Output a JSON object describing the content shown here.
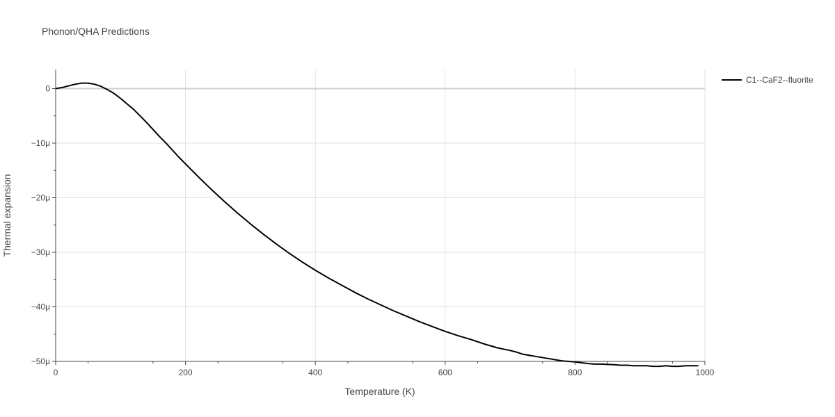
{
  "chart_data": {
    "type": "line",
    "title": "Phonon/QHA Predictions",
    "xlabel": "Temperature (K)",
    "ylabel": "Thermal expansion",
    "xlim": [
      0,
      1000
    ],
    "ylim": [
      -50,
      3.5
    ],
    "x_ticks": [
      0,
      200,
      400,
      600,
      800,
      1000
    ],
    "x_tick_labels": [
      "0",
      "200",
      "400",
      "600",
      "800",
      "1000"
    ],
    "y_ticks": [
      0,
      -10,
      -20,
      -30,
      -40,
      -50
    ],
    "y_tick_labels": [
      "0",
      "−10μ",
      "−20μ",
      "−30μ",
      "−40μ",
      "−50μ"
    ],
    "grid": true,
    "legend_position": "top-right",
    "series": [
      {
        "name": "C1--CaF2--fluorite",
        "color": "#000000",
        "x": [
          0,
          10,
          20,
          30,
          40,
          50,
          60,
          70,
          80,
          90,
          100,
          110,
          120,
          130,
          140,
          150,
          160,
          170,
          180,
          190,
          200,
          220,
          240,
          260,
          280,
          300,
          320,
          340,
          360,
          380,
          400,
          420,
          440,
          460,
          480,
          500,
          520,
          540,
          560,
          580,
          600,
          620,
          640,
          660,
          680,
          700,
          710,
          720,
          740,
          760,
          780,
          790,
          800,
          820,
          830,
          840,
          860,
          870,
          880,
          890,
          900,
          910,
          920,
          930,
          940,
          950,
          960,
          970,
          980,
          990
        ],
        "y": [
          0,
          0.2,
          0.5,
          0.8,
          1.0,
          1.0,
          0.8,
          0.4,
          -0.2,
          -0.9,
          -1.8,
          -2.8,
          -3.8,
          -5.0,
          -6.2,
          -7.5,
          -8.8,
          -10.0,
          -11.3,
          -12.6,
          -13.8,
          -16.2,
          -18.5,
          -20.7,
          -22.8,
          -24.8,
          -26.7,
          -28.5,
          -30.2,
          -31.8,
          -33.3,
          -34.7,
          -36.0,
          -37.3,
          -38.5,
          -39.6,
          -40.7,
          -41.7,
          -42.7,
          -43.6,
          -44.5,
          -45.3,
          -46.0,
          -46.8,
          -47.5,
          -48.0,
          -48.3,
          -48.7,
          -49.1,
          -49.5,
          -49.9,
          -50.0,
          -50.1,
          -50.4,
          -50.5,
          -50.5,
          -50.6,
          -50.7,
          -50.7,
          -50.8,
          -50.8,
          -50.8,
          -50.9,
          -50.9,
          -50.8,
          -50.9,
          -50.9,
          -50.8,
          -50.8,
          -50.8
        ]
      }
    ]
  }
}
